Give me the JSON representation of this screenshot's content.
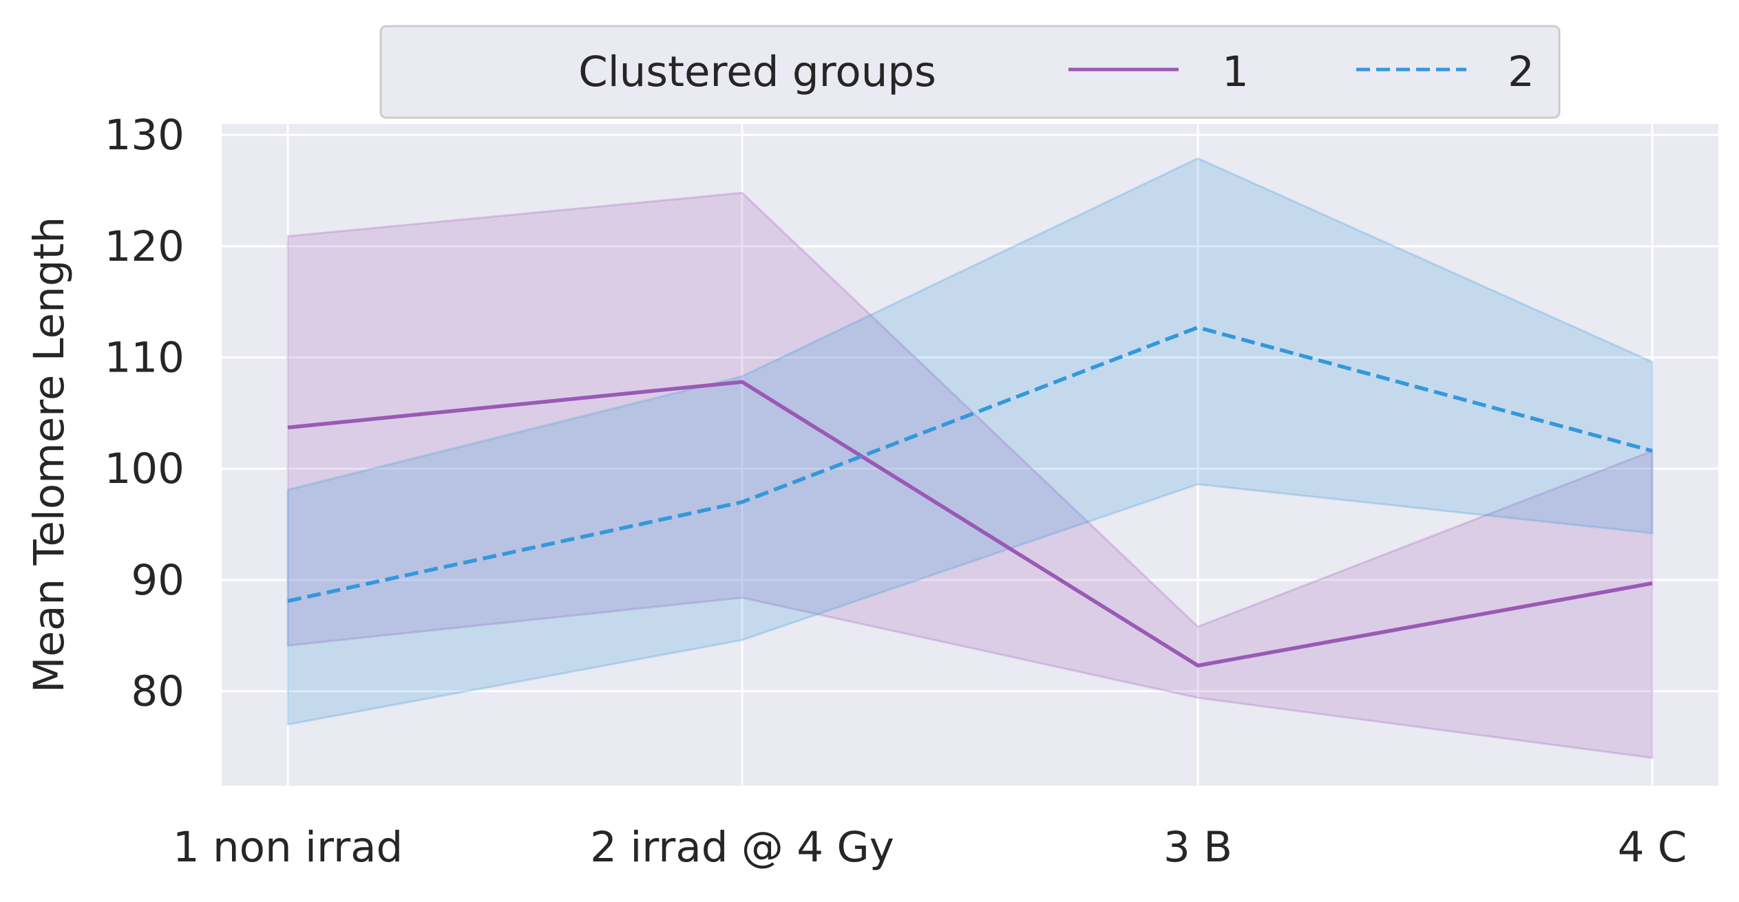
{
  "chart_data": {
    "type": "line",
    "categories": [
      "1 non irrad",
      "2 irrad @ 4 Gy",
      "3 B",
      "4 C"
    ],
    "xlabel": "",
    "ylabel": "Mean Telomere Length",
    "ylim": [
      71.5,
      131
    ],
    "yticks": [
      80,
      90,
      100,
      110,
      120,
      130
    ],
    "grid": true,
    "legend": {
      "title": "Clustered groups",
      "placement": "top-center"
    },
    "series": [
      {
        "name": "1",
        "color": "#9b59b6",
        "line_style": "solid",
        "values": [
          103.7,
          107.8,
          82.3,
          89.7
        ],
        "ci_lower": [
          84.1,
          88.4,
          79.4,
          74.0
        ],
        "ci_upper": [
          120.9,
          124.8,
          85.8,
          101.6
        ]
      },
      {
        "name": "2",
        "color": "#3498db",
        "line_style": "dashed",
        "values": [
          88.1,
          97.0,
          112.7,
          101.6
        ],
        "ci_lower": [
          77.0,
          84.6,
          98.6,
          94.2
        ],
        "ci_upper": [
          98.1,
          108.3,
          127.9,
          109.6
        ]
      }
    ]
  }
}
